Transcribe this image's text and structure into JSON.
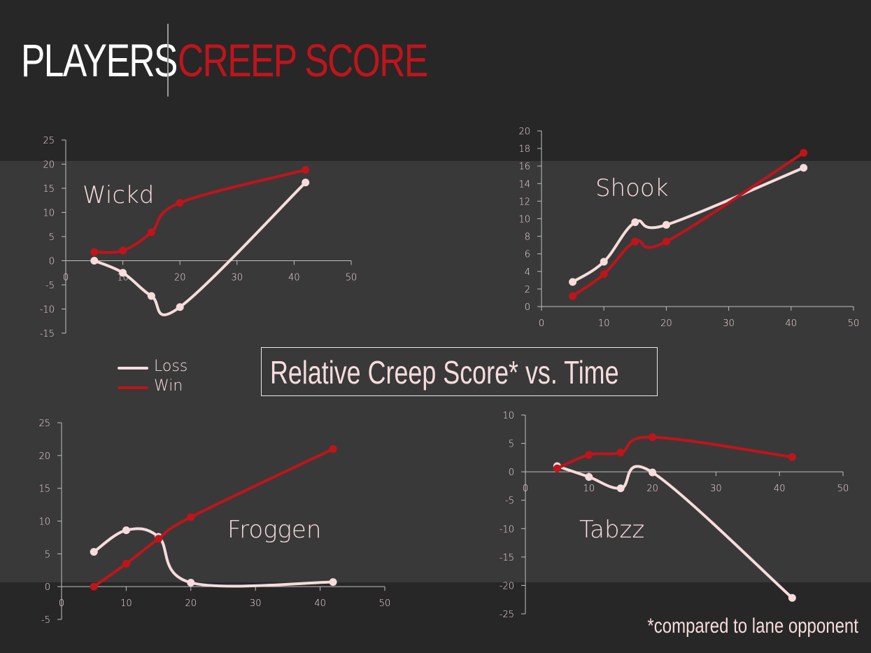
{
  "header": {
    "title_left": "PLAYERS",
    "title_right": "CREEP SCORE"
  },
  "main_title": "Relative Creep Score* vs. Time",
  "footnote": "*compared to lane opponent",
  "legend": [
    {
      "label": "Loss",
      "color": "#f7dcdc"
    },
    {
      "label": "Win",
      "color": "#c0141b"
    }
  ],
  "colors": {
    "loss": "#f7dcdc",
    "win": "#c0141b",
    "axis": "#bfbfbf",
    "text": "#f7dcdc"
  },
  "chart_data": [
    {
      "type": "line",
      "title": "Wickd",
      "xlim": [
        0,
        50
      ],
      "ylim": [
        -15,
        25
      ],
      "xticks": [
        0,
        10,
        20,
        30,
        40,
        50
      ],
      "yticks": [
        -15,
        -10,
        -5,
        0,
        5,
        10,
        15,
        20,
        25
      ],
      "series": [
        {
          "name": "Loss",
          "x": [
            5,
            10,
            15,
            20,
            42
          ],
          "y": [
            0,
            -2.5,
            -7.3,
            -9.6,
            16.2
          ]
        },
        {
          "name": "Win",
          "x": [
            5,
            10,
            15,
            20,
            42
          ],
          "y": [
            1.8,
            2.1,
            5.9,
            12,
            18.8
          ]
        }
      ]
    },
    {
      "type": "line",
      "title": "Shook",
      "xlim": [
        0,
        50
      ],
      "ylim": [
        0,
        20
      ],
      "xticks": [
        0,
        10,
        20,
        30,
        40,
        50
      ],
      "yticks": [
        0,
        2,
        4,
        6,
        8,
        10,
        12,
        14,
        16,
        18,
        20
      ],
      "series": [
        {
          "name": "Loss",
          "x": [
            5,
            10,
            15,
            20,
            42
          ],
          "y": [
            2.8,
            5.1,
            9.6,
            9.3,
            15.8
          ]
        },
        {
          "name": "Win",
          "x": [
            5,
            10,
            15,
            20,
            42
          ],
          "y": [
            1.2,
            3.7,
            7.4,
            7.4,
            17.5
          ]
        }
      ]
    },
    {
      "type": "line",
      "title": "Froggen",
      "xlim": [
        0,
        50
      ],
      "ylim": [
        -5,
        25
      ],
      "xticks": [
        0,
        10,
        20,
        30,
        40,
        50
      ],
      "yticks": [
        -5,
        0,
        5,
        10,
        15,
        20,
        25
      ],
      "series": [
        {
          "name": "Loss",
          "x": [
            5,
            10,
            15,
            20,
            42
          ],
          "y": [
            5.3,
            8.6,
            7.6,
            0.6,
            0.7
          ]
        },
        {
          "name": "Win",
          "x": [
            5,
            10,
            15,
            20,
            42
          ],
          "y": [
            0,
            3.5,
            7.3,
            10.6,
            21
          ]
        }
      ]
    },
    {
      "type": "line",
      "title": "Tabzz",
      "xlim": [
        0,
        50
      ],
      "ylim": [
        -25,
        10
      ],
      "xticks": [
        0,
        10,
        20,
        30,
        40,
        50
      ],
      "yticks": [
        -25,
        -20,
        -15,
        -10,
        -5,
        0,
        5,
        10
      ],
      "series": [
        {
          "name": "Loss",
          "x": [
            5,
            10,
            15,
            20,
            42
          ],
          "y": [
            1,
            -0.9,
            -2.9,
            -0.1,
            -22.2
          ]
        },
        {
          "name": "Win",
          "x": [
            5,
            10,
            15,
            20,
            42
          ],
          "y": [
            0.6,
            3,
            3.4,
            6.1,
            2.6
          ]
        }
      ]
    }
  ]
}
